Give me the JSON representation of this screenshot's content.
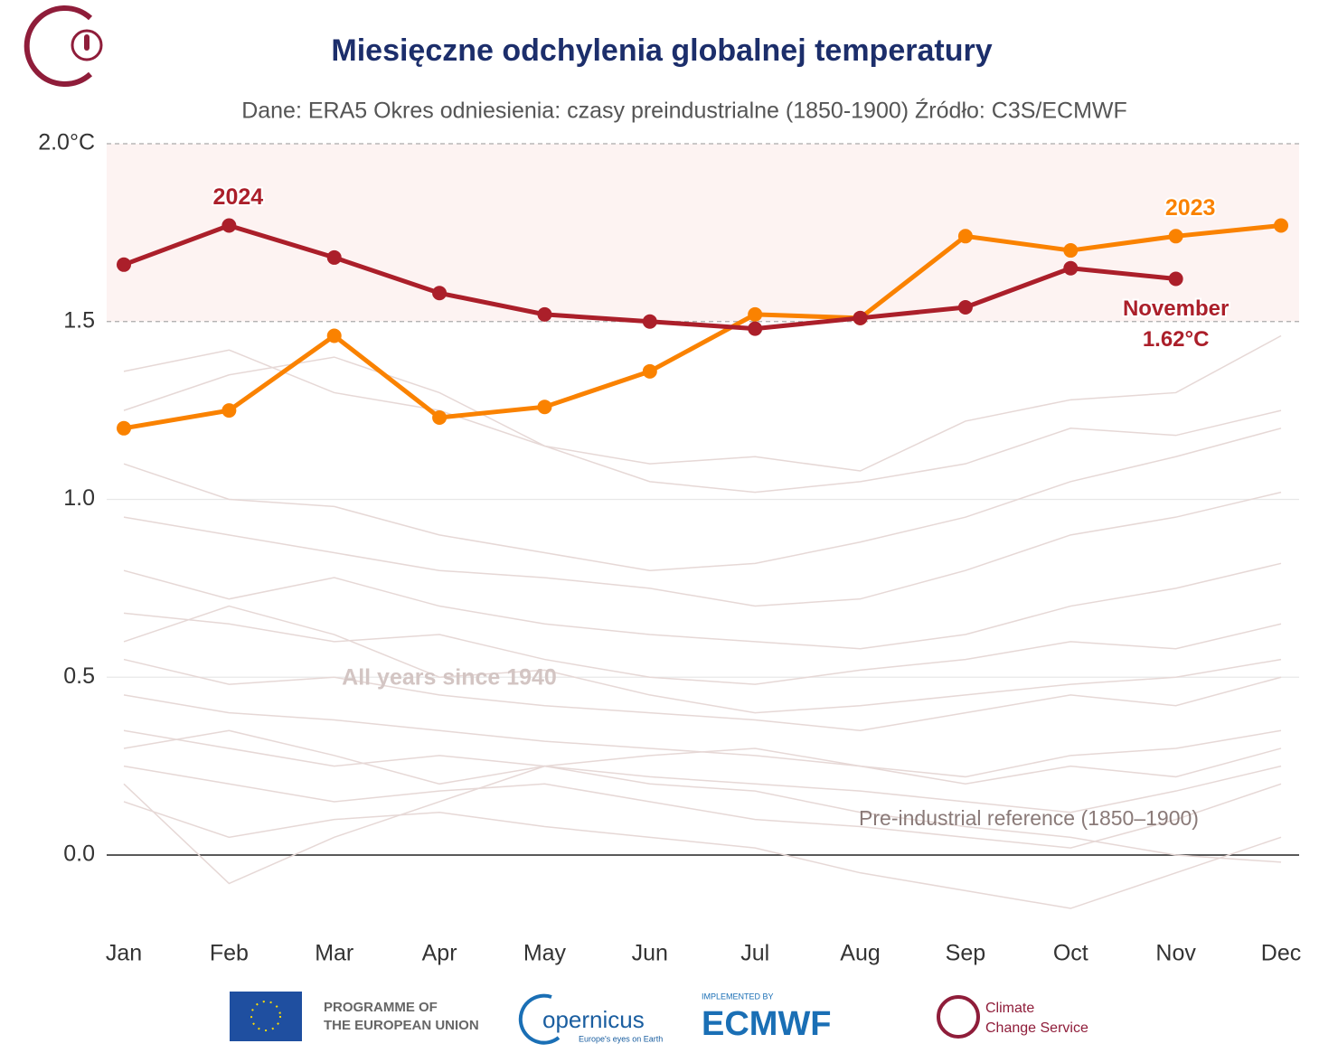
{
  "chart_data": {
    "type": "line",
    "title": "Miesięczne odchylenia globalnej temperatury",
    "subtitle": "Dane: ERA5  Okres odniesienia: czasy preindustrialne (1850-1900)  Źródło: C3S/ECMWF",
    "categories": [
      "Jan",
      "Feb",
      "Mar",
      "Apr",
      "May",
      "Jun",
      "Jul",
      "Aug",
      "Sep",
      "Oct",
      "Nov",
      "Dec"
    ],
    "ylim": [
      -0.2,
      2.0
    ],
    "yticks": [
      {
        "value": 0,
        "label": "0.0"
      },
      0.5,
      {
        "value": 1,
        "label": "1.0"
      },
      1.5,
      {
        "value": 2,
        "label": "2.0°C"
      }
    ],
    "highlight_band": [
      1.5,
      2.0
    ],
    "grid": true,
    "background_color": "#e6d8d6",
    "background_series": [
      [
        1.36,
        1.42,
        1.3,
        1.25,
        1.15,
        1.1,
        1.12,
        1.08,
        1.22,
        1.28,
        1.3,
        1.46
      ],
      [
        1.1,
        1.0,
        0.98,
        0.9,
        0.85,
        0.8,
        0.82,
        0.88,
        0.95,
        1.05,
        1.12,
        1.2
      ],
      [
        0.95,
        0.9,
        0.85,
        0.8,
        0.78,
        0.75,
        0.7,
        0.72,
        0.8,
        0.9,
        0.95,
        1.02
      ],
      [
        0.8,
        0.72,
        0.78,
        0.7,
        0.65,
        0.62,
        0.6,
        0.58,
        0.62,
        0.7,
        0.75,
        0.82
      ],
      [
        0.68,
        0.65,
        0.6,
        0.62,
        0.55,
        0.5,
        0.48,
        0.52,
        0.55,
        0.6,
        0.58,
        0.65
      ],
      [
        0.55,
        0.48,
        0.5,
        0.45,
        0.42,
        0.4,
        0.38,
        0.35,
        0.4,
        0.45,
        0.42,
        0.5
      ],
      [
        0.45,
        0.4,
        0.38,
        0.35,
        0.32,
        0.3,
        0.28,
        0.25,
        0.22,
        0.28,
        0.3,
        0.35
      ],
      [
        0.35,
        0.3,
        0.25,
        0.28,
        0.25,
        0.22,
        0.2,
        0.18,
        0.15,
        0.12,
        0.18,
        0.25
      ],
      [
        0.25,
        0.2,
        0.15,
        0.18,
        0.2,
        0.15,
        0.1,
        0.08,
        0.05,
        0.02,
        0.1,
        0.2
      ],
      [
        0.15,
        0.05,
        0.1,
        0.12,
        0.08,
        0.05,
        0.02,
        -0.05,
        -0.1,
        -0.15,
        -0.05,
        0.05
      ],
      [
        0.3,
        0.35,
        0.28,
        0.2,
        0.25,
        0.28,
        0.3,
        0.25,
        0.2,
        0.25,
        0.22,
        0.3
      ],
      [
        0.6,
        0.7,
        0.62,
        0.5,
        0.52,
        0.45,
        0.4,
        0.42,
        0.45,
        0.48,
        0.5,
        0.55
      ],
      [
        1.25,
        1.35,
        1.4,
        1.3,
        1.15,
        1.05,
        1.02,
        1.05,
        1.1,
        1.2,
        1.18,
        1.25
      ],
      [
        0.2,
        -0.08,
        0.05,
        0.15,
        0.25,
        0.2,
        0.18,
        0.12,
        0.08,
        0.05,
        0.0,
        -0.02
      ]
    ],
    "series": [
      {
        "name": "2023",
        "color": "#fa8200",
        "values": [
          1.2,
          1.25,
          1.46,
          1.23,
          1.26,
          1.36,
          1.52,
          1.51,
          1.74,
          1.7,
          1.74,
          1.77
        ]
      },
      {
        "name": "2024",
        "color": "#ab1f2a",
        "values": [
          1.66,
          1.77,
          1.68,
          1.58,
          1.52,
          1.5,
          1.48,
          1.51,
          1.54,
          1.65,
          1.62,
          null
        ]
      }
    ],
    "annotations": {
      "background": "All years since 1940",
      "reference": "Pre-industrial reference (1850–1900)",
      "latest_month": "November",
      "latest_value": "1.62°C"
    }
  },
  "footer": {
    "eu": [
      "PROGRAMME OF",
      "THE EUROPEAN UNION"
    ],
    "copernicus": "opernicus",
    "copernicus_tag": "Europe's eyes on Earth",
    "implemented": "IMPLEMENTED BY",
    "ecmwf": "ECMWF",
    "c3s": [
      "Climate",
      "Change Service"
    ]
  }
}
